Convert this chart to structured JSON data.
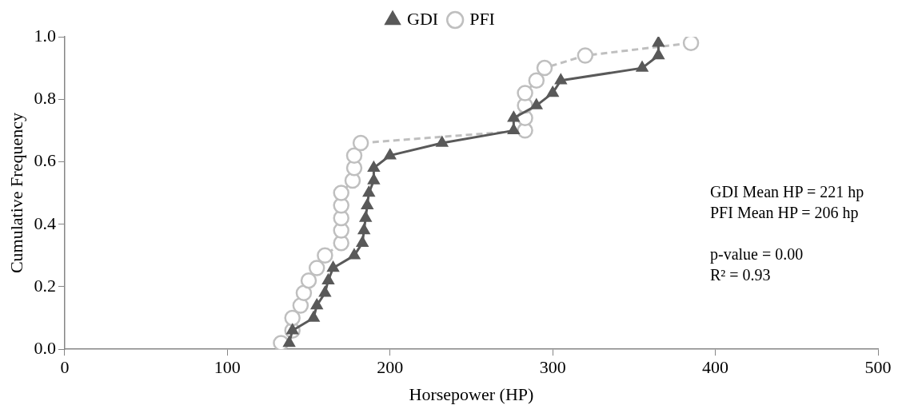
{
  "chart_data": {
    "type": "line",
    "xlabel": "Horsepower (HP)",
    "ylabel": "Cumulative Frequency",
    "xlim": [
      0,
      500
    ],
    "xticks": [
      0,
      100,
      200,
      300,
      400,
      500
    ],
    "ylim": [
      0,
      1
    ],
    "yticks": [
      {
        "value": 0,
        "label": "0.0"
      },
      {
        "value": 0.2,
        "label": "0.2"
      },
      {
        "value": 0.4,
        "label": "0.4"
      },
      {
        "value": 0.6,
        "label": "0.6"
      },
      {
        "value": 0.8,
        "label": "0.8"
      },
      {
        "value": 1,
        "label": "1.0"
      }
    ],
    "grid": false,
    "legend": "top",
    "series": [
      {
        "name": "GDI",
        "color": "#595959",
        "marker": "triangle",
        "line_style": "solid",
        "x": [
          138,
          140,
          153,
          155,
          160,
          162,
          165,
          178,
          183,
          184,
          185,
          186,
          187,
          190,
          190,
          200,
          232,
          276,
          276,
          290,
          300,
          305,
          355,
          365,
          365
        ],
        "values": [
          0.02,
          0.06,
          0.1,
          0.14,
          0.18,
          0.22,
          0.26,
          0.3,
          0.34,
          0.38,
          0.42,
          0.46,
          0.5,
          0.54,
          0.58,
          0.62,
          0.66,
          0.7,
          0.74,
          0.78,
          0.82,
          0.86,
          0.9,
          0.94,
          0.98
        ]
      },
      {
        "name": "PFI",
        "color": "#bfbfbf",
        "marker": "circle",
        "line_style": "dashed",
        "x": [
          133,
          140,
          140,
          145,
          147,
          150,
          155,
          160,
          170,
          170,
          170,
          170,
          170,
          177,
          178,
          178,
          182,
          283,
          283,
          283,
          283,
          290,
          295,
          320,
          385
        ],
        "values": [
          0.02,
          0.06,
          0.1,
          0.14,
          0.18,
          0.22,
          0.26,
          0.3,
          0.34,
          0.38,
          0.42,
          0.46,
          0.5,
          0.54,
          0.58,
          0.62,
          0.66,
          0.7,
          0.74,
          0.78,
          0.82,
          0.86,
          0.9,
          0.94,
          0.98
        ]
      }
    ],
    "annotations": [
      "GDI Mean HP = 221 hp",
      "PFI Mean HP = 206 hp",
      "p-value = 0.00",
      "R² = 0.93"
    ]
  }
}
